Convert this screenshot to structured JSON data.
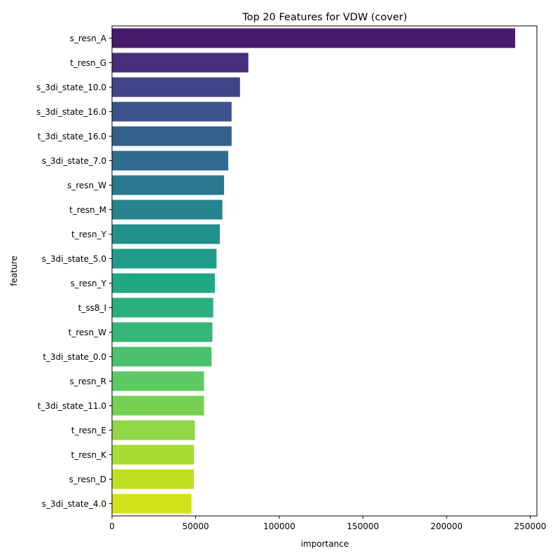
{
  "chart_data": {
    "type": "bar",
    "orientation": "horizontal",
    "title": "Top 20 Features for VDW (cover)",
    "xlabel": "importance",
    "ylabel": "feature",
    "xlim": [
      0,
      254000
    ],
    "xticks": [
      0,
      50000,
      100000,
      150000,
      200000,
      250000
    ],
    "grid": false,
    "legend": "none",
    "categories": [
      "s_resn_A",
      "t_resn_G",
      "s_3di_state_10.0",
      "s_3di_state_16.0",
      "t_3di_state_16.0",
      "s_3di_state_7.0",
      "s_resn_W",
      "t_resn_M",
      "t_resn_Y",
      "s_3di_state_5.0",
      "s_resn_Y",
      "t_ss8_I",
      "t_resn_W",
      "t_3di_state_0.0",
      "s_resn_R",
      "t_3di_state_11.0",
      "t_resn_E",
      "t_resn_K",
      "s_resn_D",
      "s_3di_state_4.0"
    ],
    "values": [
      241000,
      81500,
      76500,
      71500,
      71500,
      69500,
      67000,
      66000,
      64500,
      62500,
      61500,
      60500,
      60000,
      59500,
      55000,
      55000,
      49500,
      49000,
      49000,
      47500
    ],
    "colors": [
      "#481a6c",
      "#472f7d",
      "#414487",
      "#3b528b",
      "#355f8d",
      "#2f6c8e",
      "#2a788e",
      "#25848e",
      "#21918c",
      "#1e9c89",
      "#20a884",
      "#2ab07f",
      "#35b779",
      "#4ac16d",
      "#5ec962",
      "#75d054",
      "#8fd744",
      "#a8db34",
      "#c2df23",
      "#d2e21b"
    ]
  }
}
